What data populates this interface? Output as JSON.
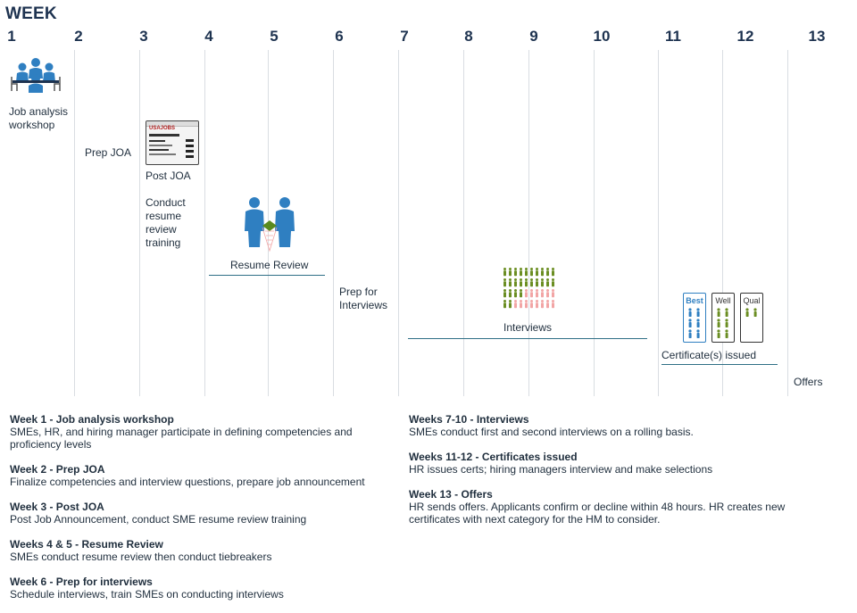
{
  "title": "WEEK",
  "weeks": [
    "1",
    "2",
    "3",
    "4",
    "5",
    "6",
    "7",
    "8",
    "9",
    "10",
    "11",
    "12",
    "13"
  ],
  "timeline": {
    "job_analysis": "Job analysis workshop",
    "prep_joa": "Prep JOA",
    "post_joa": "Post JOA",
    "conduct_training": "Conduct resume review training",
    "resume_review": "Resume Review",
    "prep_interviews": "Prep for Interviews",
    "interviews": "Interviews",
    "certificates": "Certificate(s) issued",
    "offers": "Offers",
    "usajobs_logo": "USAJOBS",
    "cert_best": "Best",
    "cert_well": "Well",
    "cert_qual": "Qual"
  },
  "descriptions_left": [
    {
      "heading": "Week 1 - Job analysis workshop",
      "body": "SMEs, HR, and hiring manager participate in defining competencies and proficiency levels"
    },
    {
      "heading": "Week 2 - Prep JOA",
      "body": "Finalize competencies and interview questions, prepare job announcement"
    },
    {
      "heading": "Week 3 - Post JOA",
      "body": "Post Job Announcement, conduct SME resume review training"
    },
    {
      "heading": "Weeks 4 & 5 - Resume Review",
      "body": "SMEs conduct resume review then conduct tiebreakers"
    },
    {
      "heading": "Week 6 - Prep for interviews",
      "body": "Schedule interviews, train SMEs on conducting interviews"
    }
  ],
  "descriptions_right": [
    {
      "heading": "Weeks 7-10 - Interviews",
      "body": "SMEs conduct first and second interviews on a rolling basis."
    },
    {
      "heading": "Weeks 11-12 - Certificates issued",
      "body": "HR issues certs; hiring managers interview and make selections"
    },
    {
      "heading": "Week 13 - Offers",
      "body": "HR sends offers. Applicants confirm or decline within 48 hours. HR creates new certificates with next category for the HM to consider."
    }
  ],
  "colors": {
    "navy": "#1e3350",
    "blue": "#2f7fc1",
    "green": "#6b8e23",
    "pink": "#f2a5a5",
    "teal_line": "#2f6f86",
    "grid": "#d9dde2"
  },
  "icons": {
    "meeting": "meeting-icon",
    "usajobs": "usajobs-page-icon",
    "two_people": "two-people-icon",
    "crowd": "crowd-icon",
    "certificates": "certificate-icon"
  }
}
